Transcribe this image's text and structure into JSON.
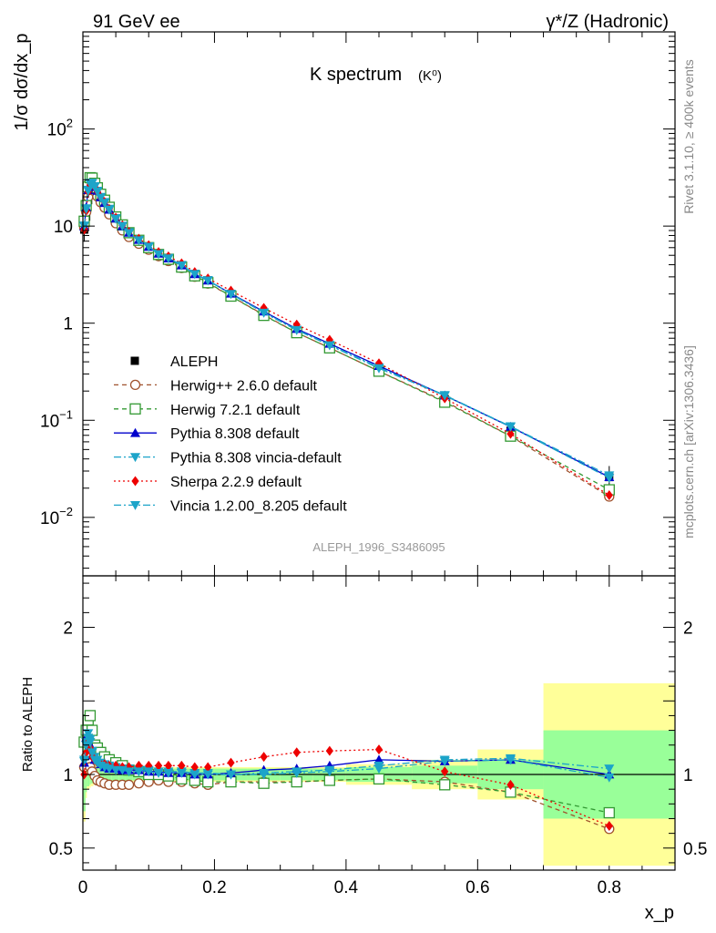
{
  "header": {
    "left": "91 GeV ee",
    "right": "γ*/Z (Hadronic)"
  },
  "side": {
    "rivet": "Rivet 3.1.10, ≥ 400k events",
    "mcplots": "mcplots.cern.ch [arXiv:1306.3436]"
  },
  "chart_data": {
    "type": "line",
    "title": "K spectrum",
    "title_sub": "(K⁰)",
    "analysis_id": "ALEPH_1996_S3486095",
    "xlabel": "x_p",
    "ylabel_main": "1/σ dσ/dx_p",
    "ylabel_ratio": "Ratio to ALEPH",
    "xlim": [
      0,
      0.9
    ],
    "ylim_main": [
      0.0025,
      1000
    ],
    "ylim_ratio": [
      0.35,
      2.35
    ],
    "yscale_main": "log",
    "x_ticks": [
      "0",
      "0.2",
      "0.4",
      "0.6",
      "0.8"
    ],
    "y_ticks_main": [
      "10^-2",
      "10^-1",
      "1",
      "10",
      "10^2"
    ],
    "y_ticks_ratio": [
      "0.5",
      "1",
      "2"
    ],
    "legend_position": "lower-left",
    "x": [
      0.002,
      0.005,
      0.008,
      0.011,
      0.014,
      0.018,
      0.022,
      0.027,
      0.033,
      0.04,
      0.05,
      0.06,
      0.07,
      0.085,
      0.1,
      0.115,
      0.13,
      0.15,
      0.17,
      0.19,
      0.225,
      0.275,
      0.325,
      0.375,
      0.45,
      0.55,
      0.65,
      0.8
    ],
    "bin_edges": [
      0,
      0.004,
      0.006,
      0.01,
      0.012,
      0.016,
      0.02,
      0.024,
      0.03,
      0.036,
      0.044,
      0.055,
      0.065,
      0.075,
      0.095,
      0.105,
      0.125,
      0.135,
      0.165,
      0.175,
      0.2,
      0.25,
      0.3,
      0.35,
      0.4,
      0.5,
      0.6,
      0.7,
      0.9
    ],
    "data": {
      "name": "ALEPH",
      "values": [
        9.2,
        12.5,
        18.5,
        22.5,
        24.0,
        23.0,
        21.0,
        18.5,
        16.5,
        14.2,
        11.5,
        9.7,
        8.3,
        7.0,
        6.0,
        5.1,
        4.6,
        3.9,
        3.2,
        2.75,
        2.0,
        1.28,
        0.84,
        0.58,
        0.33,
        0.165,
        0.078,
        0.026
      ],
      "rel_err_inner": [
        0.25,
        0.12,
        0.08,
        0.07,
        0.06,
        0.05,
        0.05,
        0.04,
        0.04,
        0.04,
        0.04,
        0.04,
        0.04,
        0.04,
        0.04,
        0.04,
        0.04,
        0.04,
        0.04,
        0.04,
        0.04,
        0.04,
        0.04,
        0.04,
        0.05,
        0.06,
        0.1,
        0.3
      ],
      "rel_err_outer": [
        0.32,
        0.16,
        0.1,
        0.09,
        0.08,
        0.07,
        0.07,
        0.06,
        0.06,
        0.06,
        0.06,
        0.06,
        0.06,
        0.05,
        0.05,
        0.05,
        0.05,
        0.05,
        0.05,
        0.05,
        0.05,
        0.05,
        0.05,
        0.05,
        0.07,
        0.1,
        0.17,
        0.62
      ]
    },
    "series": [
      {
        "name": "Herwig++ 2.6.0 default",
        "color": "#a0522d",
        "dash": "5,4",
        "marker": "open-circle",
        "ratio": [
          1.05,
          1.12,
          1.08,
          1.05,
          1.02,
          0.99,
          0.96,
          0.95,
          0.94,
          0.93,
          0.93,
          0.93,
          0.93,
          0.94,
          0.95,
          0.96,
          0.95,
          0.95,
          0.94,
          0.93,
          0.95,
          0.95,
          0.95,
          0.96,
          0.97,
          0.95,
          0.88,
          0.63
        ]
      },
      {
        "name": "Herwig 7.2.1 default",
        "color": "#339933",
        "dash": "5,4",
        "marker": "open-square",
        "ratio": [
          1.22,
          1.3,
          1.37,
          1.4,
          1.3,
          1.2,
          1.18,
          1.15,
          1.12,
          1.1,
          1.08,
          1.06,
          1.03,
          1.02,
          1.0,
          1.0,
          0.99,
          0.97,
          0.96,
          0.95,
          0.95,
          0.94,
          0.95,
          0.96,
          0.97,
          0.93,
          0.88,
          0.74
        ]
      },
      {
        "name": "Pythia 8.308 default",
        "color": "#0000cc",
        "dash": "",
        "marker": "filled-triangle-up",
        "ratio": [
          1.08,
          1.25,
          1.27,
          1.2,
          1.13,
          1.1,
          1.1,
          1.07,
          1.05,
          1.04,
          1.04,
          1.03,
          1.03,
          1.03,
          1.02,
          1.02,
          1.01,
          1.01,
          1.0,
          1.0,
          1.01,
          1.03,
          1.04,
          1.06,
          1.1,
          1.09,
          1.1,
          1.0
        ]
      },
      {
        "name": "Pythia 8.308 vincia-default",
        "color": "#1ca4c9",
        "dash": "8,3,2,3",
        "marker": "filled-triangle-down",
        "ratio": [
          1.09,
          1.22,
          1.28,
          1.24,
          1.16,
          1.12,
          1.1,
          1.08,
          1.07,
          1.06,
          1.05,
          1.04,
          1.04,
          1.03,
          1.03,
          1.02,
          1.02,
          1.02,
          1.01,
          1.01,
          1.0,
          1.01,
          1.02,
          1.03,
          1.06,
          1.1,
          1.11,
          1.04
        ]
      },
      {
        "name": "Sherpa 2.2.9 default",
        "color": "#ee0000",
        "dash": "2,3",
        "marker": "filled-diamond",
        "ratio": [
          1.0,
          1.15,
          1.22,
          1.18,
          1.12,
          1.1,
          1.08,
          1.07,
          1.07,
          1.06,
          1.06,
          1.05,
          1.05,
          1.06,
          1.06,
          1.06,
          1.06,
          1.06,
          1.05,
          1.05,
          1.08,
          1.12,
          1.15,
          1.16,
          1.17,
          1.02,
          0.93,
          0.65
        ]
      },
      {
        "name": "Vincia 1.2.00_8.205 default",
        "color": "#1ca4c9",
        "dash": "8,3,2,3",
        "marker": "filled-triangle-down",
        "ratio": [
          1.1,
          1.2,
          1.25,
          1.22,
          1.15,
          1.1,
          1.08,
          1.06,
          1.05,
          1.04,
          1.03,
          1.03,
          1.02,
          1.02,
          1.02,
          1.01,
          1.01,
          1.01,
          1.0,
          1.0,
          1.0,
          1.0,
          1.01,
          1.02,
          1.04,
          1.09,
          1.1,
          0.98
        ]
      }
    ]
  }
}
